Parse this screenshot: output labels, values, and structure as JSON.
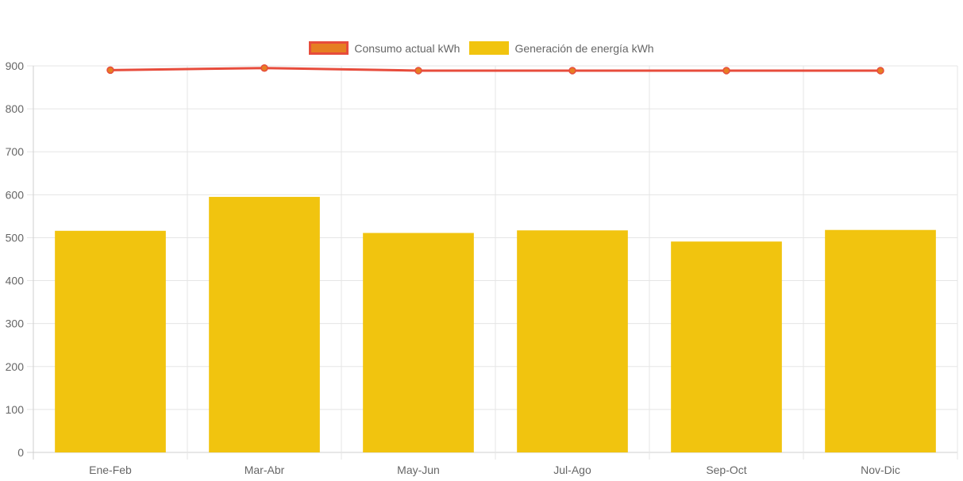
{
  "chart_data": {
    "type": "bar",
    "categories": [
      "Ene-Feb",
      "Mar-Abr",
      "May-Jun",
      "Jul-Ago",
      "Sep-Oct",
      "Nov-Dic"
    ],
    "series": [
      {
        "name": "Consumo actual kWh",
        "type": "line",
        "values": [
          890,
          895,
          889,
          889,
          889,
          889
        ],
        "color": "#e74c3c",
        "point_color": "#e67e22"
      },
      {
        "name": "Generación de energía kWh",
        "type": "bar",
        "values": [
          516,
          595,
          511,
          517,
          491,
          518
        ],
        "color": "#f1c40f"
      }
    ],
    "ylim": [
      0,
      900
    ],
    "yticks": [
      0,
      100,
      200,
      300,
      400,
      500,
      600,
      700,
      800,
      900
    ],
    "grid": true,
    "legend_position": "top-center",
    "title": "",
    "xlabel": "",
    "ylabel": ""
  }
}
